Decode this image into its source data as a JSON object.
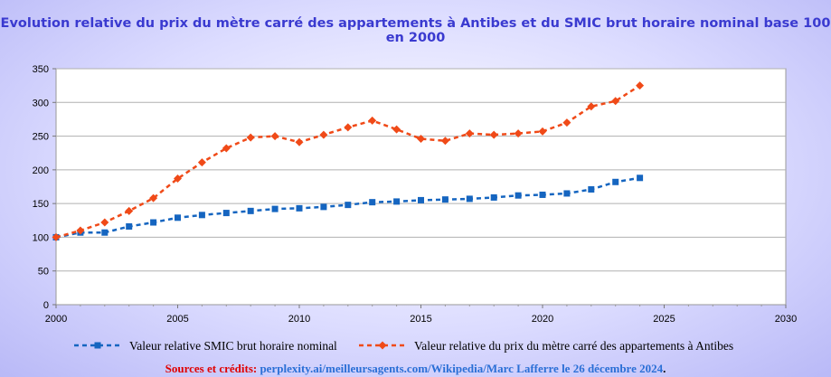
{
  "colors": {
    "smic": "#1565c0",
    "antibes": "#f04a18",
    "title": "#3a3ad0",
    "grid": "#b0b0b0"
  },
  "chart_data": {
    "type": "line",
    "title": "Evolution relative du prix du mètre carré des appartements à Antibes et du SMIC brut horaire nominal base 100 en 2000",
    "xlabel": "",
    "ylabel": "",
    "xlim": [
      2000,
      2030
    ],
    "ylim": [
      0,
      350
    ],
    "xticks": [
      2000,
      2005,
      2010,
      2015,
      2020,
      2025,
      2030
    ],
    "yticks": [
      0,
      50,
      100,
      150,
      200,
      250,
      300,
      350
    ],
    "grid": true,
    "legend_position": "bottom",
    "series": [
      {
        "name": "Valeur relative SMIC brut horaire nominal",
        "color": "#1565c0",
        "marker": "square",
        "style": "dashed",
        "x": [
          2000,
          2001,
          2002,
          2003,
          2004,
          2005,
          2006,
          2007,
          2008,
          2009,
          2010,
          2011,
          2012,
          2013,
          2014,
          2015,
          2016,
          2017,
          2018,
          2019,
          2020,
          2021,
          2022,
          2023,
          2024
        ],
        "y": [
          100,
          107,
          107,
          116,
          122,
          129,
          133,
          136,
          139,
          142,
          143,
          145,
          148,
          152,
          153,
          155,
          156,
          157,
          159,
          162,
          163,
          165,
          171,
          182,
          188
        ]
      },
      {
        "name": "Valeur relative du prix du mètre carré des appartements à Antibes",
        "color": "#f04a18",
        "marker": "diamond",
        "style": "dashed",
        "x": [
          2000,
          2001,
          2002,
          2003,
          2004,
          2005,
          2006,
          2007,
          2008,
          2009,
          2010,
          2011,
          2012,
          2013,
          2014,
          2015,
          2016,
          2017,
          2018,
          2019,
          2020,
          2021,
          2022,
          2023,
          2024
        ],
        "y": [
          100,
          110,
          122,
          139,
          158,
          187,
          211,
          232,
          248,
          250,
          241,
          252,
          263,
          273,
          260,
          246,
          243,
          254,
          252,
          254,
          257,
          270,
          294,
          302,
          325
        ]
      }
    ]
  },
  "sources": {
    "label": "Sources et crédits:",
    "value": "perplexity.ai/meilleursagents.com/Wikipedia/Marc Lafferre le 26 décembre 2024",
    "end": "."
  }
}
